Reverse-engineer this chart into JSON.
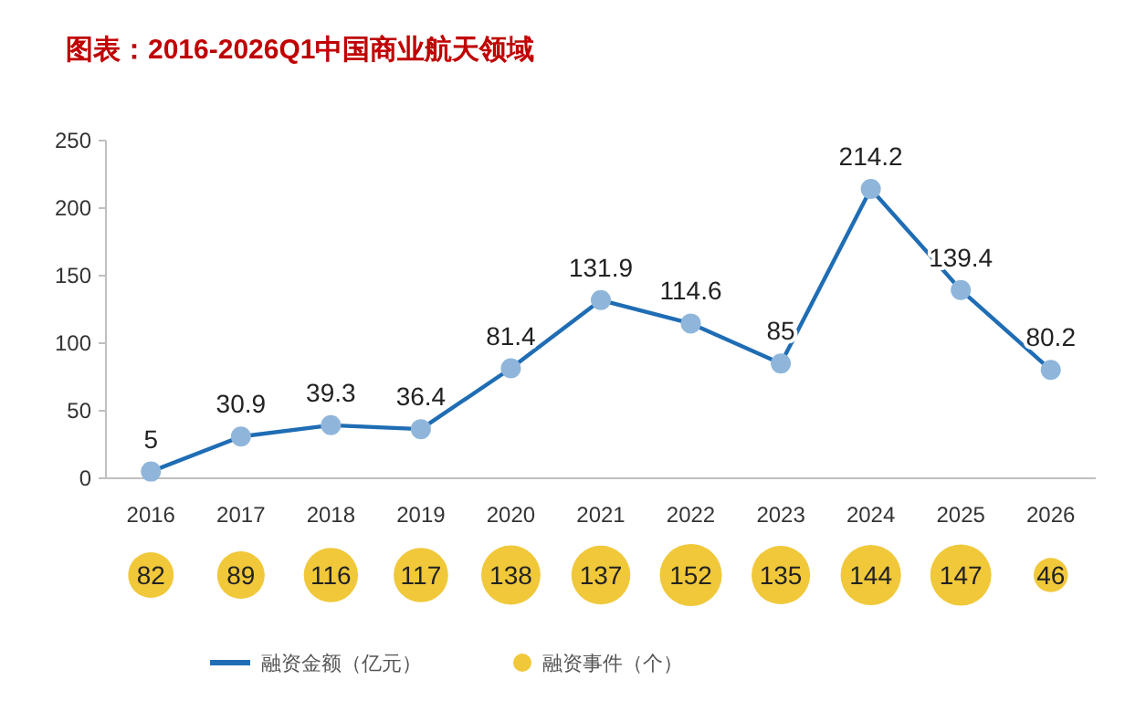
{
  "chart_data": [
    {
      "type": "line",
      "title": "图表：2016-2026Q1中国商业航天领域",
      "categories": [
        "2016",
        "2017",
        "2018",
        "2019",
        "2020",
        "2021",
        "2022",
        "2023",
        "2024",
        "2025",
        "2026"
      ],
      "series": [
        {
          "name": "融资金额（亿元）",
          "color": "#1f6db4",
          "values": [
            5,
            30.9,
            39.3,
            36.4,
            81.4,
            131.9,
            114.6,
            85,
            214.2,
            139.4,
            80.2
          ]
        }
      ],
      "ylim": [
        0,
        250
      ],
      "yticks": [
        0,
        50,
        100,
        150,
        200,
        250
      ],
      "marker": "circle",
      "data_labels": true,
      "legend": "bottom"
    },
    {
      "type": "other",
      "categories": [
        null,
        null,
        null,
        null,
        null,
        null,
        null,
        null,
        null,
        null,
        null
      ],
      "series": [
        {
          "name": "融资事件（个）",
          "color": "#f0c83a",
          "values": [
            82,
            89,
            116,
            117,
            138,
            137,
            152,
            135,
            144,
            147,
            46
          ]
        }
      ],
      "data_labels": true,
      "legend": "bottom"
    }
  ]
}
